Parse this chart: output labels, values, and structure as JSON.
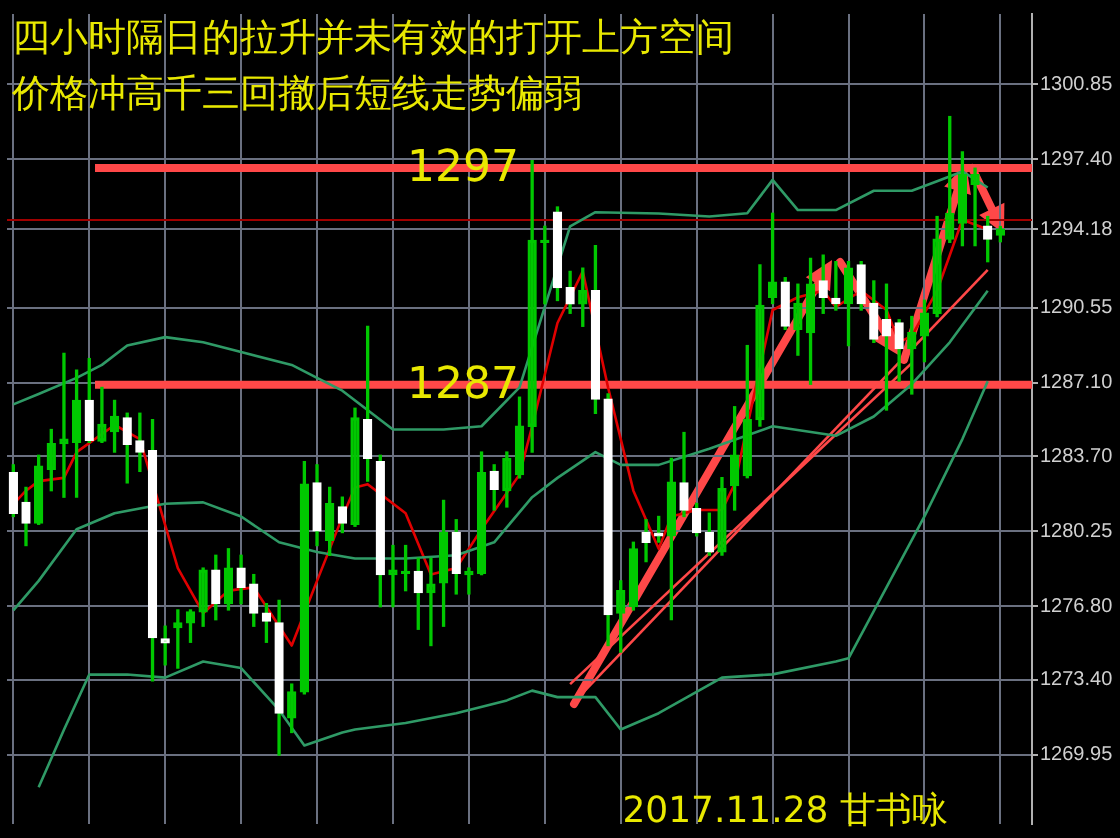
{
  "chart_data": {
    "type": "candlestick",
    "title": "四小时隔日的拉升并未有效的打开上方空间",
    "subtitle": "价格冲高千三回撤后短线走势偏弱",
    "annotations": [
      "2017.11.28 甘书咏"
    ],
    "categories": [
      null,
      null,
      null,
      null,
      null,
      null,
      null,
      null,
      null,
      null,
      null,
      null,
      null,
      null,
      null,
      null,
      null,
      null,
      null,
      null,
      null,
      null,
      null,
      null,
      null,
      null,
      null,
      null,
      null,
      null,
      null,
      null,
      null,
      null,
      null,
      null,
      null,
      null,
      null,
      null,
      null,
      null,
      null,
      null,
      null,
      null,
      null,
      null,
      null,
      null,
      null,
      null,
      null,
      null,
      null,
      null,
      null,
      null,
      null,
      null,
      null,
      null,
      null,
      null,
      null,
      null,
      null,
      null,
      null,
      null,
      null,
      null,
      null,
      null,
      null,
      null,
      null,
      null,
      null,
      null,
      null
    ],
    "color": "#00c800",
    "colors": [
      "#ffffff",
      "#ffffff",
      "#00c800",
      "#00c800",
      "#00c800",
      "#00c800",
      "#ffffff",
      "#00c800",
      "#00c800",
      "#ffffff",
      "#ffffff",
      "#ffffff",
      "#ffffff",
      "#00c800",
      "#00c800",
      "#00c800",
      "#ffffff",
      "#00c800",
      "#ffffff",
      "#ffffff",
      "#ffffff",
      "#ffffff",
      "#00c800",
      "#00c800",
      "#ffffff",
      "#00c800",
      "#ffffff",
      "#00c800",
      "#ffffff",
      "#ffffff",
      "#00c800",
      "#00c800",
      "#ffffff",
      "#00c800",
      "#00c800",
      "#ffffff",
      "#00c800",
      "#00c800",
      "#ffffff",
      "#00c800",
      "#00c800",
      "#00c800",
      "#00c800",
      "#ffffff",
      "#ffffff",
      "#00c800",
      "#ffffff",
      "#ffffff",
      "#00c800",
      "#00c800",
      "#ffffff",
      "#ffffff",
      "#00c800",
      "#ffffff",
      "#ffffff",
      "#ffffff",
      "#00c800",
      "#00c800",
      "#00c800",
      "#00c800",
      "#00c800",
      "#ffffff",
      "#00c800",
      "#00c800",
      "#ffffff",
      "#ffffff",
      "#00c800",
      "#ffffff",
      "#ffffff",
      "#ffffff",
      "#ffffff",
      "#00c800",
      "#00c800",
      "#00c800",
      "#00c800",
      "#00c800",
      "#00c800",
      "#ffffff",
      "#00c800",
      null,
      null
    ],
    "ohlc": [
      [
        1282.95,
        1283.31,
        1280.93,
        1281.08
      ],
      [
        1281.58,
        1282.27,
        1279.59,
        1280.63
      ],
      [
        1280.63,
        1283.75,
        1280.57,
        1283.25
      ],
      [
        1283.1,
        1284.94,
        1282.12,
        1284.29
      ],
      [
        1284.29,
        1288.45,
        1281.82,
        1284.5
      ],
      [
        1284.35,
        1287.68,
        1281.82,
        1286.28
      ],
      [
        1286.28,
        1288.21,
        1284.35,
        1284.44
      ],
      [
        1284.41,
        1286.88,
        1284.35,
        1285.18
      ],
      [
        1284.85,
        1286.28,
        1283.9,
        1285.54
      ],
      [
        1285.48,
        1285.69,
        1282.48,
        1284.26
      ],
      [
        1284.41,
        1285.69,
        1283.01,
        1283.9
      ],
      [
        1283.96,
        1285.39,
        1273.35,
        1275.34
      ],
      [
        1275.28,
        1275.87,
        1274.09,
        1275.1
      ],
      [
        1275.81,
        1276.62,
        1273.94,
        1276.02
      ],
      [
        1276.02,
        1276.62,
        1275.13,
        1276.53
      ],
      [
        1276.53,
        1278.55,
        1275.87,
        1278.46
      ],
      [
        1278.46,
        1279.14,
        1276.17,
        1276.91
      ],
      [
        1276.91,
        1279.44,
        1276.62,
        1278.55
      ],
      [
        1278.55,
        1279.14,
        1276.91,
        1277.66
      ],
      [
        1277.81,
        1278.25,
        1275.87,
        1276.47
      ],
      [
        1276.47,
        1276.91,
        1275.13,
        1276.11
      ],
      [
        1276.02,
        1277.06,
        1269.93,
        1271.86
      ],
      [
        1271.65,
        1273.2,
        1270.97,
        1272.84
      ],
      [
        1272.84,
        1283.46,
        1272.75,
        1282.42
      ],
      [
        1282.48,
        1283.31,
        1279.59,
        1280.27
      ],
      [
        1279.83,
        1282.27,
        1279.14,
        1281.52
      ],
      [
        1281.37,
        1281.82,
        1280.19,
        1280.63
      ],
      [
        1280.57,
        1285.92,
        1280.48,
        1285.48
      ],
      [
        1285.39,
        1289.7,
        1282.56,
        1283.61
      ],
      [
        1283.46,
        1283.75,
        1276.77,
        1278.25
      ],
      [
        1278.25,
        1279.59,
        1276.77,
        1278.46
      ],
      [
        1278.31,
        1279.59,
        1277.51,
        1278.4
      ],
      [
        1278.4,
        1279.0,
        1275.73,
        1277.42
      ],
      [
        1277.42,
        1279.0,
        1274.98,
        1277.81
      ],
      [
        1277.87,
        1281.67,
        1275.87,
        1280.19
      ],
      [
        1280.19,
        1280.78,
        1277.36,
        1278.31
      ],
      [
        1278.25,
        1278.55,
        1277.36,
        1278.4
      ],
      [
        1278.31,
        1283.9,
        1278.25,
        1282.95
      ],
      [
        1283.01,
        1283.31,
        1281.23,
        1282.18
      ],
      [
        1282.12,
        1283.9,
        1281.37,
        1283.61
      ],
      [
        1282.86,
        1286.43,
        1282.71,
        1285.09
      ],
      [
        1285.09,
        1297.34,
        1283.9,
        1293.66
      ],
      [
        1293.57,
        1294.31,
        1290.74,
        1293.66
      ],
      [
        1294.96,
        1295.2,
        1290.89,
        1291.48
      ],
      [
        1291.48,
        1292.23,
        1290.3,
        1290.74
      ],
      [
        1290.74,
        1292.38,
        1289.7,
        1291.34
      ],
      [
        1291.34,
        1293.42,
        1285.69,
        1286.34
      ],
      [
        1286.34,
        1286.58,
        1274.98,
        1276.41
      ],
      [
        1276.47,
        1277.96,
        1274.68,
        1277.51
      ],
      [
        1276.77,
        1279.74,
        1276.62,
        1279.44
      ],
      [
        1280.19,
        1280.78,
        1278.85,
        1279.74
      ],
      [
        1280.16,
        1280.93,
        1279.75,
        1280.04
      ],
      [
        1280.04,
        1283.61,
        1276.18,
        1282.51
      ],
      [
        1282.48,
        1284.8,
        1280.93,
        1281.23
      ],
      [
        1281.29,
        1281.53,
        1280.04,
        1280.19
      ],
      [
        1280.19,
        1281.08,
        1279.15,
        1279.3
      ],
      [
        1279.3,
        1282.72,
        1279.15,
        1282.21
      ],
      [
        1282.36,
        1285.99,
        1281.23,
        1283.76
      ],
      [
        1282.81,
        1288.81,
        1282.72,
        1285.4
      ],
      [
        1285.4,
        1292.53,
        1285.1,
        1290.66
      ],
      [
        1291.04,
        1294.91,
        1290.75,
        1291.73
      ],
      [
        1291.73,
        1291.94,
        1289.56,
        1289.71
      ],
      [
        1289.56,
        1291.64,
        1288.37,
        1290.75
      ],
      [
        1289.41,
        1292.83,
        1287.03,
        1291.64
      ],
      [
        1291.79,
        1292.98,
        1290.3,
        1291.04
      ],
      [
        1290.99,
        1292.68,
        1290.45,
        1290.75
      ],
      [
        1290.75,
        1292.68,
        1288.81,
        1292.38
      ],
      [
        1292.53,
        1292.68,
        1290.45,
        1290.75
      ],
      [
        1290.75,
        1291.79,
        1288.96,
        1289.11
      ],
      [
        1290.0,
        1291.64,
        1285.84,
        1289.26
      ],
      [
        1289.86,
        1290.0,
        1287.18,
        1288.67
      ],
      [
        1288.67,
        1290.15,
        1286.58,
        1289.41
      ],
      [
        1289.26,
        1290.9,
        1288.07,
        1290.3
      ],
      [
        1290.3,
        1294.76,
        1290.15,
        1293.72
      ],
      [
        1293.72,
        1299.37,
        1293.57,
        1294.91
      ],
      [
        1294.46,
        1297.74,
        1293.42,
        1296.69
      ],
      [
        1296.25,
        1296.99,
        1293.42,
        1296.69
      ],
      [
        1294.32,
        1294.76,
        1292.68,
        1293.72
      ],
      [
        1293.9,
        1294.3,
        1293.6,
        1294.18
      ],
      null,
      null
    ],
    "series": [
      {
        "type": "line",
        "color": "#2f9a66",
        "values": [
          1286.1,
          null,
          1286.58,
          null,
          null,
          1287.32,
          null,
          1287.92,
          null,
          1288.81,
          null,
          null,
          1289.2,
          null,
          null,
          1288.96,
          null,
          null,
          1288.51,
          null,
          null,
          null,
          1287.92,
          null,
          1287.32,
          null,
          1286.73,
          null,
          null,
          null,
          1284.94,
          null,
          null,
          null,
          1284.94,
          null,
          null,
          1285.09,
          null,
          null,
          1286.88,
          null,
          null,
          null,
          1294.31,
          null,
          1294.96,
          null,
          null,
          null,
          null,
          1294.9,
          null,
          null,
          null,
          1294.76,
          null,
          null,
          1294.91,
          null,
          1296.45,
          null,
          1295.06,
          null,
          null,
          1295.06,
          null,
          null,
          1295.95,
          null,
          null,
          1295.95,
          null,
          1296.39,
          null,
          1296.84,
          null,
          1296.1,
          null,
          null,
          null
        ]
      },
      {
        "type": "line",
        "color": "#2f9a66",
        "values": [
          1276.6,
          null,
          1277.96,
          null,
          null,
          1280.34,
          null,
          null,
          1281.08,
          null,
          null,
          null,
          1281.52,
          null,
          null,
          1281.58,
          null,
          null,
          1280.93,
          null,
          null,
          1279.74,
          null,
          null,
          1279.29,
          null,
          null,
          1278.99,
          null,
          null,
          null,
          1278.99,
          null,
          null,
          null,
          1279.14,
          null,
          null,
          1279.74,
          null,
          null,
          1281.82,
          null,
          1282.71,
          null,
          null,
          1283.9,
          null,
          1283.31,
          null,
          null,
          1283.31,
          null,
          null,
          null,
          1284.05,
          null,
          null,
          null,
          null,
          1285.09,
          null,
          null,
          null,
          null,
          1284.65,
          null,
          null,
          1285.54,
          null,
          null,
          1287.03,
          null,
          null,
          1288.96,
          null,
          null,
          1291.34,
          null,
          null,
          null
        ]
      },
      {
        "type": "line",
        "color": "#2f9a66",
        "values": [
          null,
          null,
          1268.44,
          null,
          1271.1,
          null,
          1273.64,
          null,
          null,
          1273.64,
          null,
          null,
          1273.5,
          null,
          null,
          1274.24,
          null,
          null,
          1273.94,
          null,
          null,
          1272.01,
          null,
          1270.37,
          null,
          null,
          1270.97,
          1271.11,
          null,
          null,
          null,
          1271.41,
          null,
          null,
          null,
          1271.86,
          null,
          null,
          null,
          1272.45,
          null,
          1272.9,
          null,
          1272.6,
          null,
          null,
          1272.6,
          null,
          1271.11,
          null,
          null,
          1271.86,
          null,
          null,
          null,
          null,
          1273.5,
          null,
          null,
          null,
          1273.65,
          null,
          null,
          null,
          null,
          1274.24,
          1274.39,
          null,
          null,
          1277.66,
          null,
          null,
          1280.93,
          null,
          null,
          1284.5,
          null,
          1287.17,
          null,
          null,
          null
        ]
      },
      {
        "type": "line",
        "color": "#e00000",
        "values": [
          1281.5,
          1282.12,
          1282.56,
          null,
          1282.71,
          1283.9,
          null,
          null,
          1285.15,
          null,
          1284.5,
          null,
          null,
          1278.55,
          null,
          1276.47,
          null,
          1277.51,
          null,
          1277.66,
          1276.77,
          null,
          1274.98,
          null,
          1277.96,
          null,
          1280.9,
          1282.27,
          1282.42,
          null,
          null,
          1281.08,
          null,
          1278.25,
          null,
          1278.55,
          null,
          1280.34,
          null,
          null,
          1282.86,
          1285.09,
          null,
          1289.85,
          null,
          1292.23,
          null,
          1286.88,
          null,
          1282.12,
          null,
          1279.44,
          1280.93,
          null,
          1281.23,
          null,
          1281.23,
          1282.42,
          null,
          null,
          1290.45,
          null,
          1291.04,
          null,
          1291.34,
          1290.59,
          null,
          1291.34,
          null,
          1290.45,
          1288.96,
          1289.26,
          null,
          1291.34,
          null,
          1294.61,
          null,
          1294.16,
          null,
          null,
          null
        ]
      },
      {
        "type": "line",
        "color": "#ff4848",
        "values": [
          null,
          null,
          null,
          null,
          null,
          null,
          null,
          null,
          null,
          null,
          null,
          null,
          null,
          null,
          null,
          null,
          null,
          null,
          null,
          null,
          null,
          null,
          null,
          null,
          null,
          null,
          null,
          null,
          null,
          null,
          null,
          null,
          null,
          null,
          null,
          null,
          null,
          null,
          null,
          null,
          null,
          null,
          null,
          null,
          null,
          1272.8,
          null,
          null,
          null,
          null,
          null,
          null,
          null,
          null,
          null,
          null,
          null,
          null,
          null,
          null,
          null,
          null,
          null,
          null,
          null,
          null,
          null,
          null,
          null,
          null,
          null,
          null,
          null,
          null,
          null,
          null,
          null,
          1292.3,
          null,
          null,
          null
        ]
      },
      {
        "type": "line",
        "color": "#ff4848",
        "values": [
          null,
          null,
          null,
          null,
          null,
          null,
          null,
          null,
          null,
          null,
          null,
          null,
          null,
          null,
          null,
          null,
          null,
          null,
          null,
          null,
          null,
          null,
          null,
          null,
          null,
          null,
          null,
          null,
          null,
          null,
          null,
          null,
          null,
          null,
          null,
          null,
          null,
          null,
          null,
          null,
          null,
          null,
          null,
          null,
          1273.2,
          null,
          null,
          null,
          null,
          null,
          null,
          null,
          null,
          null,
          null,
          null,
          null,
          null,
          null,
          null,
          null,
          null,
          null,
          null,
          null,
          null,
          null,
          null,
          null,
          null,
          null,
          1288.0,
          null,
          null,
          null,
          null,
          null,
          null,
          null,
          null,
          null
        ]
      }
    ],
    "ylim": [
      1266.75,
      1304.1
    ],
    "yticks": [
      1269.95,
      {
        "value": 1273.4,
        "label": "1273.40"
      },
      {
        "value": 1276.8,
        "label": "1276.80"
      },
      {
        "value": 1280.25,
        "label": "1280.25"
      },
      {
        "value": 1283.7,
        "label": "1283.70"
      },
      {
        "value": 1287.1,
        "label": "1287.10"
      },
      1290.55,
      1294.18,
      {
        "value": 1297.4,
        "label": "1297.40"
      },
      1300.85
    ],
    "ref_lines": [
      {
        "axis": "y",
        "value": 1297,
        "label": "1297",
        "color": "#ff4848"
      },
      {
        "axis": "y",
        "value": 1287,
        "label": "1287",
        "color": "#ff4848"
      },
      {
        "axis": "y",
        "value": 1294.6,
        "color": "#a00000"
      }
    ],
    "grid": true,
    "tick_labels": "y",
    "marker": "none"
  }
}
